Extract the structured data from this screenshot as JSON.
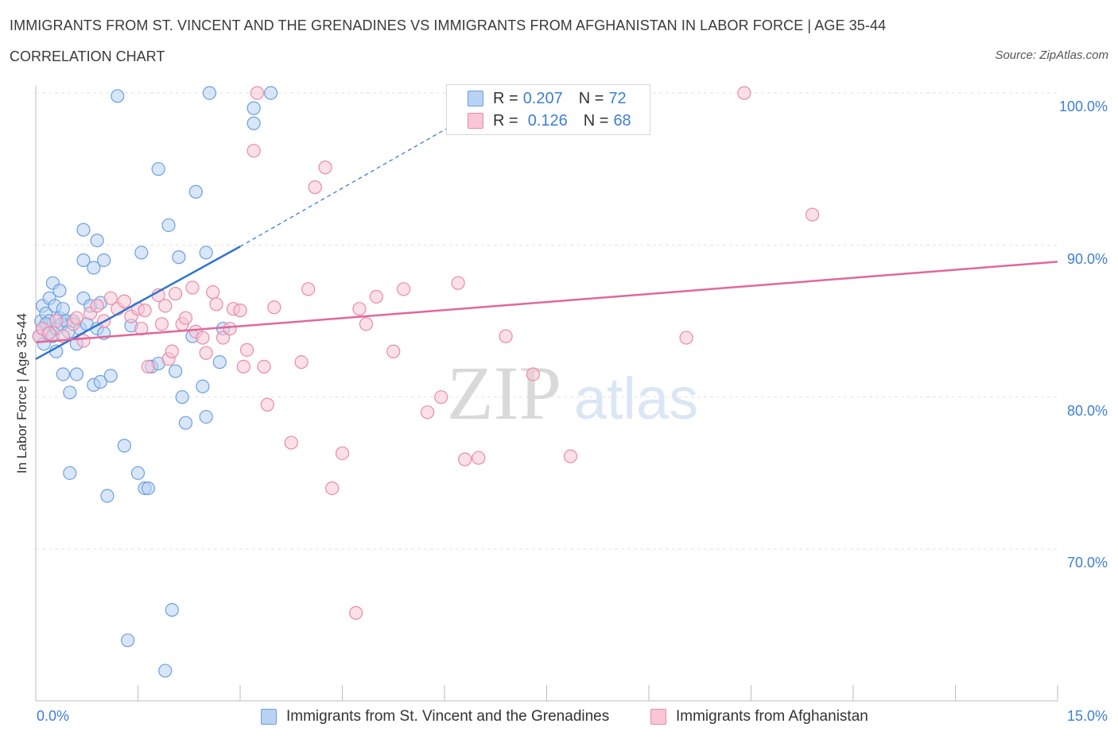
{
  "header": {
    "title": "IMMIGRANTS FROM ST. VINCENT AND THE GRENADINES VS IMMIGRANTS FROM AFGHANISTAN IN LABOR FORCE | AGE 35-44",
    "subtitle": "CORRELATION CHART",
    "source": "Source: ZipAtlas.com"
  },
  "watermark": {
    "zip": "ZIP",
    "atlas": "atlas"
  },
  "legend": {
    "r_label": "R =",
    "n_label": "N =",
    "series1": {
      "r": "0.207",
      "n": "72"
    },
    "series2": {
      "r": "0.126",
      "n": "68"
    }
  },
  "colors": {
    "series1_fill": "#b8d2f3",
    "series1_stroke": "#6c9fe0",
    "series1_line": "#2f74d0",
    "series2_fill": "#f8c6d5",
    "series2_stroke": "#e98aa9",
    "series2_line": "#e0689a",
    "tick_text": "#3d7fd4",
    "grid": "#e2e2e2"
  },
  "chart_data": {
    "type": "scatter",
    "title": "IMMIGRANTS FROM ST. VINCENT AND THE GRENADINES VS IMMIGRANTS FROM AFGHANISTAN IN LABOR FORCE | AGE 35-44",
    "xlabel": "",
    "ylabel": "In Labor Force | Age 35-44",
    "xlim": [
      0,
      15
    ],
    "ylim": [
      60.5,
      101
    ],
    "x_tick_labels": [
      "0.0%",
      "15.0%"
    ],
    "y_ticks": [
      70,
      80,
      90,
      100
    ],
    "y_tick_labels": [
      "70.0%",
      "80.0%",
      "90.0%",
      "100.0%"
    ],
    "grid": true,
    "legend_position": "top-center",
    "series": [
      {
        "name": "Immigrants from St. Vincent and the Grenadines",
        "r": 0.207,
        "n": 72,
        "trend": {
          "x": [
            0.0,
            3.0
          ],
          "y": [
            82.5,
            89.9
          ],
          "extended_to": [
            6.4,
            98.6
          ]
        },
        "points": [
          [
            0.05,
            84.0
          ],
          [
            0.08,
            85.0
          ],
          [
            0.1,
            86.0
          ],
          [
            0.1,
            84.5
          ],
          [
            0.12,
            83.5
          ],
          [
            0.15,
            85.5
          ],
          [
            0.18,
            84.2
          ],
          [
            0.2,
            86.5
          ],
          [
            0.2,
            85.0
          ],
          [
            0.25,
            84.0
          ],
          [
            0.25,
            87.5
          ],
          [
            0.28,
            86.0
          ],
          [
            0.3,
            84.5
          ],
          [
            0.3,
            83.0
          ],
          [
            0.35,
            85.2
          ],
          [
            0.35,
            87.0
          ],
          [
            0.38,
            84.8
          ],
          [
            0.4,
            85.8
          ],
          [
            0.4,
            81.5
          ],
          [
            0.45,
            85.0
          ],
          [
            0.48,
            84.3
          ],
          [
            0.5,
            80.3
          ],
          [
            0.5,
            75.0
          ],
          [
            0.55,
            85.0
          ],
          [
            0.6,
            81.5
          ],
          [
            0.6,
            83.5
          ],
          [
            0.65,
            84.5
          ],
          [
            0.7,
            89.0
          ],
          [
            0.7,
            86.5
          ],
          [
            0.7,
            91.0
          ],
          [
            0.75,
            84.8
          ],
          [
            0.8,
            86.0
          ],
          [
            0.85,
            88.5
          ],
          [
            0.85,
            80.8
          ],
          [
            0.9,
            90.3
          ],
          [
            0.9,
            84.5
          ],
          [
            0.95,
            86.2
          ],
          [
            0.95,
            81.0
          ],
          [
            1.0,
            84.2
          ],
          [
            1.0,
            89.0
          ],
          [
            1.05,
            73.5
          ],
          [
            1.1,
            81.4
          ],
          [
            1.2,
            99.8
          ],
          [
            1.3,
            76.8
          ],
          [
            1.35,
            64.0
          ],
          [
            1.4,
            84.7
          ],
          [
            1.5,
            75.0
          ],
          [
            1.55,
            89.5
          ],
          [
            1.6,
            74.0
          ],
          [
            1.65,
            74.0
          ],
          [
            1.7,
            82.0
          ],
          [
            1.8,
            82.2
          ],
          [
            1.8,
            95.0
          ],
          [
            1.9,
            62.0
          ],
          [
            1.95,
            91.3
          ],
          [
            2.0,
            66.0
          ],
          [
            2.05,
            81.7
          ],
          [
            2.1,
            89.2
          ],
          [
            2.15,
            80.0
          ],
          [
            2.2,
            78.3
          ],
          [
            2.3,
            84.0
          ],
          [
            2.35,
            93.5
          ],
          [
            2.45,
            80.7
          ],
          [
            2.5,
            89.5
          ],
          [
            2.5,
            78.7
          ],
          [
            2.55,
            100.0
          ],
          [
            2.7,
            82.3
          ],
          [
            2.75,
            84.5
          ],
          [
            3.2,
            98.0
          ],
          [
            3.2,
            99.0
          ],
          [
            3.45,
            100.0
          ],
          [
            0.15,
            84.8
          ]
        ]
      },
      {
        "name": "Immigrants from Afghanistan",
        "r": 0.126,
        "n": 68,
        "trend": {
          "x": [
            0.0,
            15.0
          ],
          "y": [
            83.6,
            88.9
          ]
        },
        "points": [
          [
            0.05,
            84.0
          ],
          [
            0.1,
            84.5
          ],
          [
            0.2,
            84.2
          ],
          [
            0.3,
            85.0
          ],
          [
            0.4,
            84.0
          ],
          [
            0.55,
            84.8
          ],
          [
            0.7,
            83.7
          ],
          [
            0.8,
            85.5
          ],
          [
            0.9,
            86.0
          ],
          [
            1.0,
            85.0
          ],
          [
            1.1,
            86.5
          ],
          [
            1.2,
            85.8
          ],
          [
            1.3,
            86.3
          ],
          [
            1.4,
            85.3
          ],
          [
            1.5,
            85.8
          ],
          [
            1.55,
            84.5
          ],
          [
            1.6,
            85.7
          ],
          [
            1.65,
            82.0
          ],
          [
            1.8,
            86.7
          ],
          [
            1.85,
            84.8
          ],
          [
            1.9,
            86.0
          ],
          [
            1.95,
            82.5
          ],
          [
            2.0,
            83.0
          ],
          [
            2.05,
            86.8
          ],
          [
            2.15,
            84.8
          ],
          [
            2.2,
            85.2
          ],
          [
            2.3,
            87.2
          ],
          [
            2.35,
            84.3
          ],
          [
            2.45,
            83.9
          ],
          [
            2.5,
            82.9
          ],
          [
            2.6,
            86.9
          ],
          [
            2.65,
            86.1
          ],
          [
            2.75,
            83.9
          ],
          [
            2.85,
            84.5
          ],
          [
            2.9,
            85.8
          ],
          [
            3.0,
            85.7
          ],
          [
            3.05,
            82.0
          ],
          [
            3.1,
            83.1
          ],
          [
            3.2,
            96.2
          ],
          [
            3.25,
            100.0
          ],
          [
            3.35,
            82.0
          ],
          [
            3.4,
            79.5
          ],
          [
            3.5,
            85.9
          ],
          [
            3.75,
            77.0
          ],
          [
            3.9,
            82.3
          ],
          [
            4.0,
            87.1
          ],
          [
            4.1,
            93.8
          ],
          [
            4.25,
            95.1
          ],
          [
            4.35,
            74.0
          ],
          [
            4.5,
            76.3
          ],
          [
            4.7,
            65.8
          ],
          [
            4.75,
            85.8
          ],
          [
            4.85,
            84.8
          ],
          [
            5.0,
            86.6
          ],
          [
            5.25,
            83.0
          ],
          [
            5.4,
            87.1
          ],
          [
            5.75,
            79.0
          ],
          [
            5.95,
            80.0
          ],
          [
            6.2,
            87.5
          ],
          [
            6.3,
            75.9
          ],
          [
            6.5,
            76.0
          ],
          [
            6.9,
            84.0
          ],
          [
            7.3,
            81.5
          ],
          [
            7.85,
            76.1
          ],
          [
            9.55,
            83.9
          ],
          [
            10.4,
            100.0
          ],
          [
            11.4,
            92.0
          ],
          [
            0.6,
            85.2
          ]
        ]
      }
    ]
  },
  "bottom_legend": {
    "series1": "Immigrants from St. Vincent and the Grenadines",
    "series2": "Immigrants from Afghanistan"
  }
}
